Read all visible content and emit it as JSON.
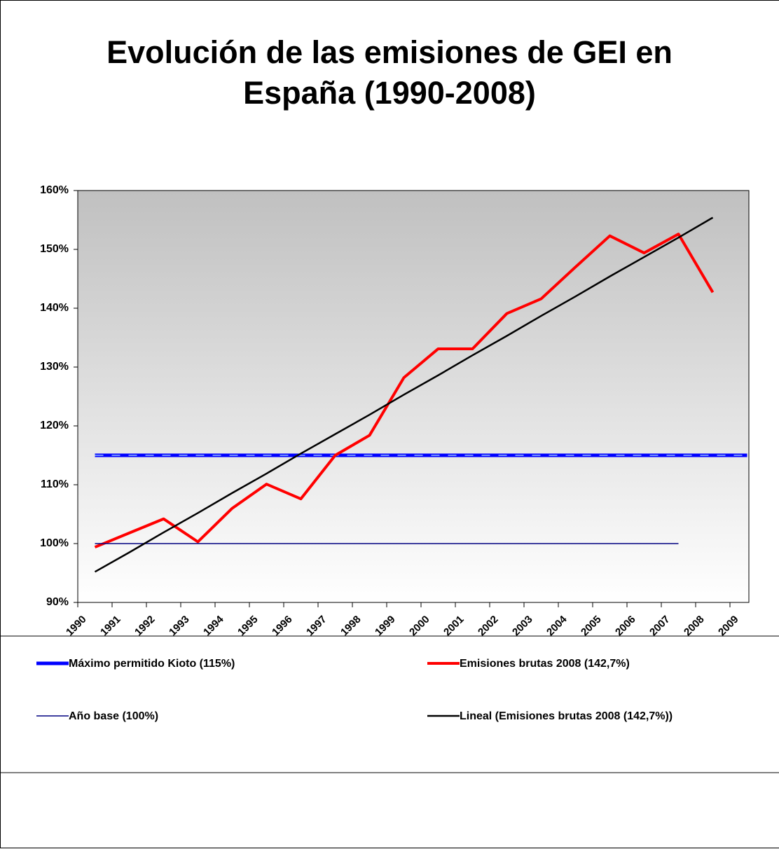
{
  "chart_data": {
    "type": "line",
    "title": "Evolución de las emisiones de GEI en España (1990-2008)",
    "categories": [
      "1990",
      "1991",
      "1992",
      "1993",
      "1994",
      "1995",
      "1996",
      "1997",
      "1998",
      "1999",
      "2000",
      "2001",
      "2002",
      "2003",
      "2004",
      "2005",
      "2006",
      "2007",
      "2008",
      "2009"
    ],
    "series": [
      {
        "name": "Máximo permitido Kioto (115%)",
        "color": "#0000ff",
        "values": [
          115,
          115,
          115,
          115,
          115,
          115,
          115,
          115,
          115,
          115,
          115,
          115,
          115,
          115,
          115,
          115,
          115,
          115,
          115,
          115
        ]
      },
      {
        "name": "Emisiones brutas 2008 (142,7%)",
        "color": "#ff0000",
        "values": [
          99.4,
          101.8,
          104.2,
          100.3,
          106.0,
          110.1,
          107.6,
          115.0,
          118.4,
          128.2,
          133.1,
          133.1,
          139.1,
          141.6,
          147.0,
          152.3,
          149.4,
          152.6,
          142.7,
          null
        ]
      },
      {
        "name": "Año base (100%)",
        "color": "#000080",
        "values": [
          100,
          100,
          100,
          100,
          100,
          100,
          100,
          100,
          100,
          100,
          100,
          100,
          100,
          100,
          100,
          100,
          100,
          100,
          null,
          null
        ]
      },
      {
        "name": "Lineal (Emisiones brutas 2008 (142,7%))",
        "color": "#000000",
        "values": [
          95.2,
          98.5,
          101.9,
          105.2,
          108.6,
          111.9,
          115.3,
          118.6,
          121.9,
          125.3,
          128.6,
          132.0,
          135.3,
          138.7,
          142.0,
          145.4,
          148.7,
          152.0,
          155.4,
          null
        ]
      }
    ],
    "ylim": [
      90,
      160
    ],
    "yticks": [
      {
        "value": 90,
        "label": "90%"
      },
      {
        "value": 100,
        "label": "100%"
      },
      {
        "value": 110,
        "label": "110%"
      },
      {
        "value": 120,
        "label": "120%"
      },
      {
        "value": 130,
        "label": "130%"
      },
      {
        "value": 140,
        "label": "140%"
      },
      {
        "value": 150,
        "label": "150%"
      },
      {
        "value": 160,
        "label": "160%"
      }
    ],
    "grid": false,
    "legend": "bottom"
  }
}
